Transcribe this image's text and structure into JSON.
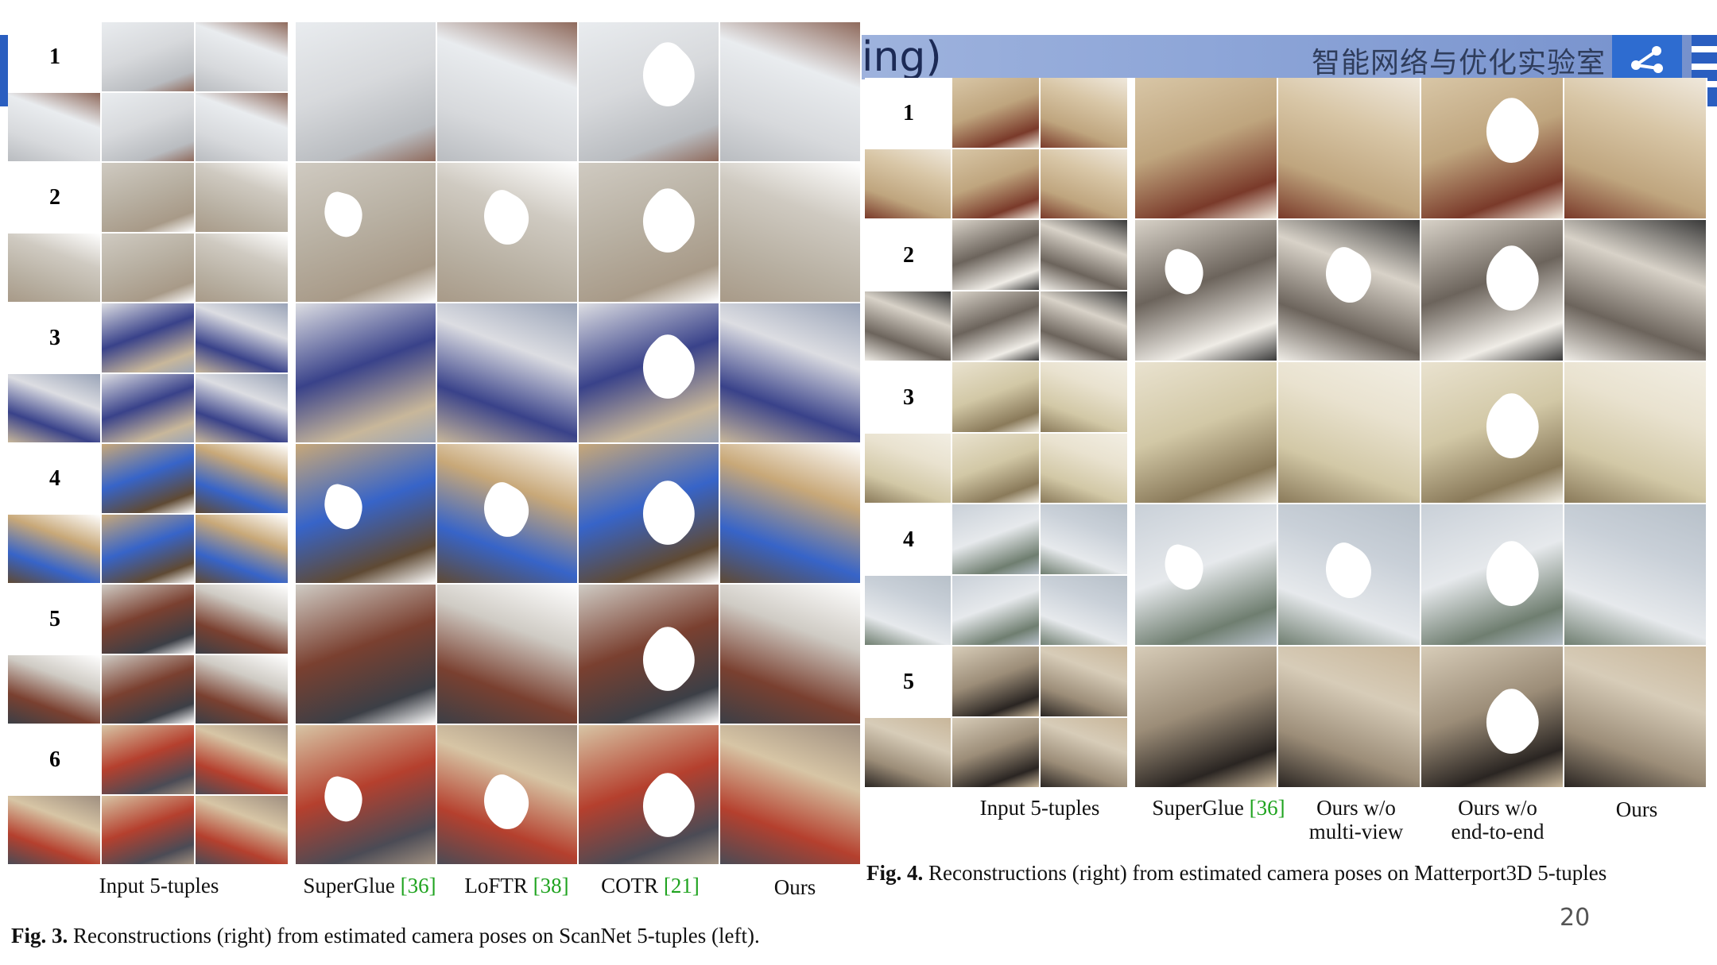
{
  "header": {
    "lab_name": "智能网络与优化实验室",
    "partial_title": "ing)"
  },
  "figure3": {
    "rows": [
      "1",
      "2",
      "3",
      "4",
      "5",
      "6"
    ],
    "labels": {
      "input": "Input 5-tuples",
      "m1_name": "SuperGlue",
      "m1_ref": "[36]",
      "m2_name": "LoFTR",
      "m2_ref": "[38]",
      "m3_name": "COTR",
      "m3_ref": "[21]",
      "ours": "Ours"
    },
    "caption_bold": "Fig. 3.",
    "caption_text": " Reconstructions (right) from estimated camera poses on ScanNet 5-tuples (left).",
    "row_colors": [
      [
        "#e9ecef",
        "#d7d9dc",
        "#b9bcc0",
        "#8f6a5c"
      ],
      [
        "#cfcac1",
        "#b8b0a2",
        "#a89a88",
        "#ffffff"
      ],
      [
        "#dcdde2",
        "#39428a",
        "#c8b79a",
        "#9aa4b8"
      ],
      [
        "#c8a878",
        "#3764c8",
        "#5f4a34",
        "#ffffff"
      ],
      [
        "#cfcbc4",
        "#7a4030",
        "#3c3f46",
        "#ffffff"
      ],
      [
        "#d7c5a5",
        "#b5402e",
        "#4b4b55",
        "#9f8f80"
      ]
    ]
  },
  "figure4": {
    "rows": [
      "1",
      "2",
      "3",
      "4",
      "5"
    ],
    "labels": {
      "input": "Input 5-tuples",
      "m1_name": "SuperGlue",
      "m1_ref": "[36]",
      "m2_l1": "Ours w/o",
      "m2_l2": "multi-view",
      "m3_l1": "Ours w/o",
      "m3_l2": "end-to-end",
      "ours": "Ours"
    },
    "caption_bold": "Fig. 4.",
    "caption_text": " Reconstructions (right) from estimated camera poses on Matterport3D 5-tuples",
    "row_colors": [
      [
        "#d8c6a6",
        "#bfa57e",
        "#7a3a2a",
        "#efe8dc"
      ],
      [
        "#d8d2c8",
        "#6c645c",
        "#efece6",
        "#3a3a3a"
      ],
      [
        "#e9e2cf",
        "#d2c8a6",
        "#8a7a5a",
        "#f2eee3"
      ],
      [
        "#c9d0d8",
        "#e6e9ec",
        "#6f7e70",
        "#b7c0c9"
      ],
      [
        "#d7ccb8",
        "#9c8d78",
        "#2a2522",
        "#c8b69a"
      ]
    ]
  },
  "page_number": "20"
}
